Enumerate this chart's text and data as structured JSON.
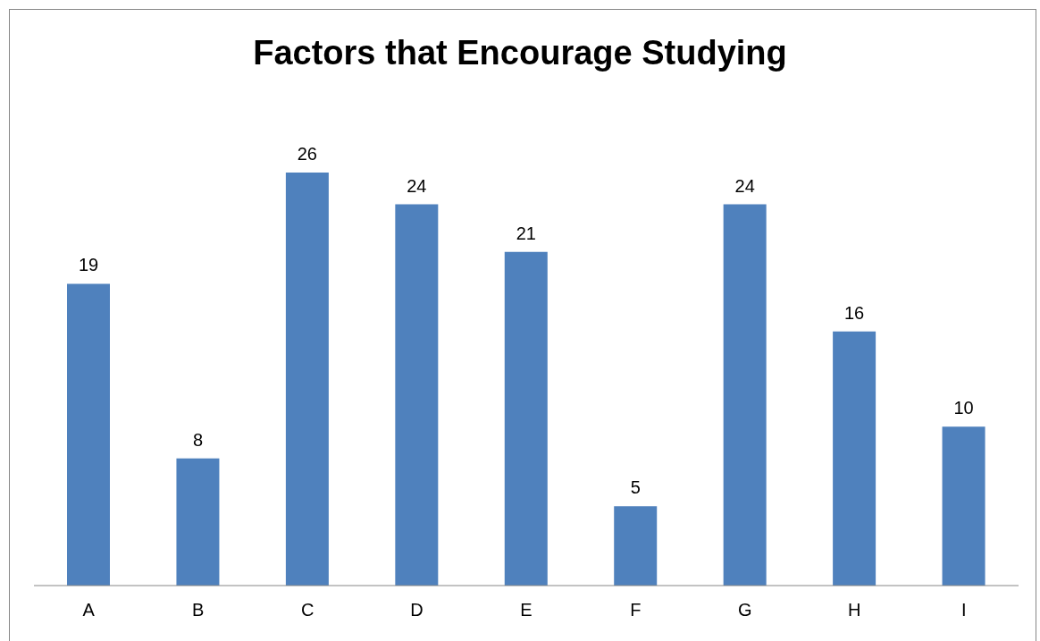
{
  "chart_data": {
    "type": "bar",
    "title": "Factors that Encourage Studying",
    "categories": [
      "A",
      "B",
      "C",
      "D",
      "E",
      "F",
      "G",
      "H",
      "I"
    ],
    "values": [
      19,
      8,
      26,
      24,
      21,
      5,
      24,
      16,
      10
    ],
    "color": "#4f81bd",
    "data_labels": true
  }
}
